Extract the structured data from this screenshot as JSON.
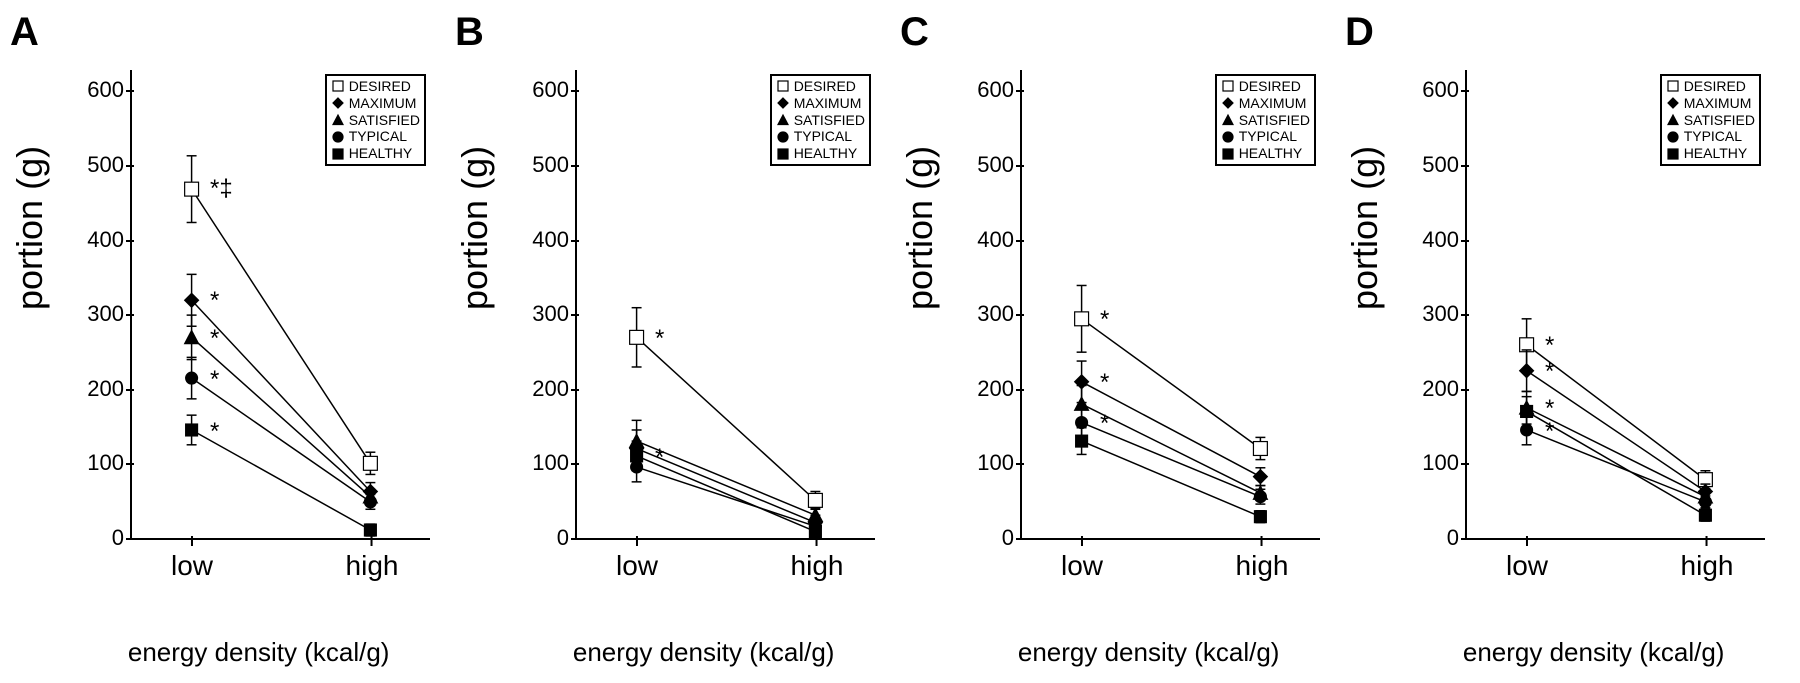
{
  "figure": {
    "background_color": "#ffffff",
    "line_color": "#000000",
    "ylabel": "portion (g)",
    "xlabel": "energy density (kcal/g)",
    "ylabel_fontsize": 36,
    "xlabel_fontsize": 26,
    "panel_letter_fontsize": 40,
    "tick_fontsize_y": 22,
    "tick_fontsize_x": 28,
    "annot_fontsize": 24,
    "ylim": [
      0,
      630
    ],
    "yticks": [
      0,
      100,
      200,
      300,
      400,
      500,
      600
    ],
    "x_categories": [
      "low",
      "high"
    ],
    "x_positions": [
      0.2,
      0.8
    ],
    "legend_items": [
      {
        "label": "DESIRED",
        "marker": "square",
        "fill": "open"
      },
      {
        "label": "MAXIMUM",
        "marker": "diamond",
        "fill": "filled"
      },
      {
        "label": "SATISFIED",
        "marker": "triangle",
        "fill": "filled"
      },
      {
        "label": "TYPICAL",
        "marker": "circle",
        "fill": "filled"
      },
      {
        "label": "HEALTHY",
        "marker": "square",
        "fill": "filled"
      }
    ],
    "series_style": {
      "DESIRED": {
        "marker": "square",
        "fill": "open",
        "size": 7
      },
      "MAXIMUM": {
        "marker": "diamond",
        "fill": "filled",
        "size": 7
      },
      "SATISFIED": {
        "marker": "triangle",
        "fill": "filled",
        "size": 7
      },
      "TYPICAL": {
        "marker": "circle",
        "fill": "filled",
        "size": 6
      },
      "HEALTHY": {
        "marker": "square",
        "fill": "filled",
        "size": 6
      }
    }
  },
  "panels": [
    {
      "letter": "A",
      "series": {
        "DESIRED": {
          "low": {
            "y": 470,
            "err": 45,
            "annot": "*‡"
          },
          "high": {
            "y": 100,
            "err": 15
          }
        },
        "MAXIMUM": {
          "low": {
            "y": 320,
            "err": 35,
            "annot": "*"
          },
          "high": {
            "y": 62,
            "err": 12
          }
        },
        "SATISFIED": {
          "low": {
            "y": 270,
            "err": 30,
            "annot": "*"
          },
          "high": {
            "y": 55,
            "err": 10
          }
        },
        "TYPICAL": {
          "low": {
            "y": 215,
            "err": 28,
            "annot": "*"
          },
          "high": {
            "y": 48,
            "err": 10
          }
        },
        "HEALTHY": {
          "low": {
            "y": 145,
            "err": 20,
            "annot": "*"
          },
          "high": {
            "y": 10,
            "err": 8
          }
        }
      }
    },
    {
      "letter": "B",
      "series": {
        "DESIRED": {
          "low": {
            "y": 270,
            "err": 40,
            "annot": "*"
          },
          "high": {
            "y": 50,
            "err": 12
          }
        },
        "SATISFIED": {
          "low": {
            "y": 130,
            "err": 28
          },
          "high": {
            "y": 30,
            "err": 10
          }
        },
        "MAXIMUM": {
          "low": {
            "y": 120,
            "err": 25
          },
          "high": {
            "y": 20,
            "err": 10
          }
        },
        "HEALTHY": {
          "low": {
            "y": 110,
            "err": 20,
            "annot": "*"
          },
          "high": {
            "y": 8,
            "err": 8
          }
        },
        "TYPICAL": {
          "low": {
            "y": 95,
            "err": 20
          },
          "high": {
            "y": 15,
            "err": 8
          }
        }
      }
    },
    {
      "letter": "C",
      "series": {
        "DESIRED": {
          "low": {
            "y": 295,
            "err": 45,
            "annot": "*"
          },
          "high": {
            "y": 120,
            "err": 15
          }
        },
        "MAXIMUM": {
          "low": {
            "y": 210,
            "err": 28,
            "annot": "*"
          },
          "high": {
            "y": 82,
            "err": 12
          }
        },
        "SATISFIED": {
          "low": {
            "y": 180,
            "err": 25
          },
          "high": {
            "y": 60,
            "err": 10
          }
        },
        "TYPICAL": {
          "low": {
            "y": 155,
            "err": 20,
            "annot": "*"
          },
          "high": {
            "y": 55,
            "err": 10
          }
        },
        "HEALTHY": {
          "low": {
            "y": 130,
            "err": 18
          },
          "high": {
            "y": 28,
            "err": 8
          }
        }
      }
    },
    {
      "letter": "D",
      "series": {
        "DESIRED": {
          "low": {
            "y": 260,
            "err": 35,
            "annot": "*"
          },
          "high": {
            "y": 78,
            "err": 12
          }
        },
        "MAXIMUM": {
          "low": {
            "y": 225,
            "err": 28,
            "annot": "*"
          },
          "high": {
            "y": 62,
            "err": 10
          }
        },
        "SATISFIED": {
          "low": {
            "y": 175,
            "err": 22,
            "annot": "*"
          },
          "high": {
            "y": 55,
            "err": 10
          }
        },
        "HEALTHY": {
          "low": {
            "y": 170,
            "err": 20
          },
          "high": {
            "y": 30,
            "err": 8
          }
        },
        "TYPICAL": {
          "low": {
            "y": 145,
            "err": 20,
            "annot": "*"
          },
          "high": {
            "y": 48,
            "err": 8
          }
        }
      }
    }
  ]
}
